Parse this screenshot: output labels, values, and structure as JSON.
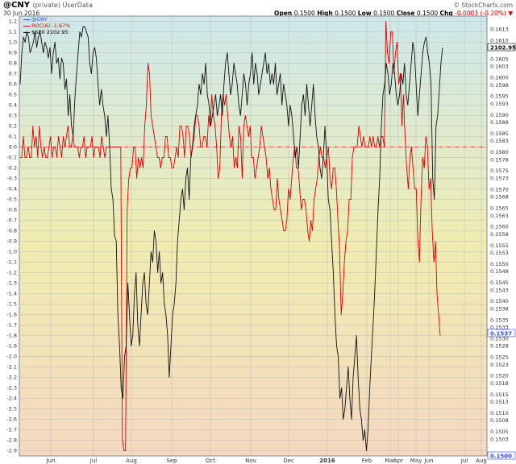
{
  "header": {
    "symbol": "@CNY",
    "symbol_note": "(private) UserData",
    "date": "30 Jun 2016",
    "brand": "© StockCharts.com",
    "open_label": "Open",
    "open": "0.1500",
    "high_label": "High",
    "high": "0.1500",
    "low_label": "Low",
    "low": "0.1500",
    "close_label": "Close",
    "close": "0.1500",
    "chg_label": "Chg",
    "chg": "-0.0003 (-0.20%) ▼"
  },
  "legend": [
    {
      "text": "@CNY",
      "color": "#3344ff"
    },
    {
      "text": "ROC(6) -1.67%",
      "color": "#dd0000"
    },
    {
      "text": "$SPX 2102.95",
      "color": "#000000"
    }
  ],
  "colors": {
    "roc": "#dd0000",
    "spx": "#111111",
    "zero_line": "#dd2222",
    "bg_top": "#cde8ea",
    "bg_mid": "#f0ecb0",
    "bg_bottom": "#f4d8c0",
    "grid": "#bcbcbc",
    "tag_spx_bg": "#ffffff"
  },
  "chart_data": {
    "type": "line",
    "left_axis": {
      "label": "ROC(6)",
      "range": [
        -2.95,
        1.25
      ],
      "ticks": [
        "1.2",
        "1.1",
        "1.0",
        "0.9",
        "0.8",
        "0.7",
        "0.6",
        "0.5",
        "0.4",
        "0.3",
        "0.2",
        "0.1",
        "0.0",
        "-0.1",
        "-0.2",
        "-0.3",
        "-0.4",
        "-0.5",
        "-0.6",
        "-0.7",
        "-0.8",
        "-0.9",
        "-1.0",
        "-1.1",
        "-1.2",
        "-1.3",
        "-1.4",
        "-1.5",
        "-1.6",
        "-1.7",
        "-1.8",
        "-1.9",
        "-2.0",
        "-2.1",
        "-2.2",
        "-2.3",
        "-2.4",
        "-2.5",
        "-2.6",
        "-2.7",
        "-2.8",
        "-2.9"
      ]
    },
    "right_axis": {
      "label": "@CNY",
      "range": [
        0.14985,
        0.16165
      ],
      "ticks": [
        "0.1613",
        "0.1610",
        "0.1608",
        "0.1605",
        "0.1603",
        "0.1600",
        "0.1598",
        "0.1595",
        "0.1593",
        "0.1590",
        "0.1588",
        "0.1585",
        "0.1583",
        "0.1580",
        "0.1578",
        "0.1575",
        "0.1573",
        "0.1570",
        "0.1568",
        "0.1565",
        "0.1563",
        "0.1560",
        "0.1558",
        "0.1555",
        "0.1553",
        "0.1550",
        "0.1548",
        "0.1545",
        "0.1543",
        "0.1540",
        "0.1538",
        "0.1535",
        "0.1533",
        "0.1530",
        "0.1528",
        "0.1525",
        "0.1523",
        "0.1520",
        "0.1518",
        "0.1515",
        "0.1513",
        "0.1510",
        "0.1508",
        "0.1505",
        "0.1503"
      ],
      "tags": {
        "spx": "2102.95",
        "roc": "0.1537",
        "cny": "0.1500"
      }
    },
    "x_labels": [
      "Jun",
      "Jul",
      "Aug",
      "Sep",
      "Oct",
      "Nov",
      "Dec",
      "2016",
      "Feb",
      "Mar",
      "Apr",
      "May",
      "Jun",
      "Jul",
      "Aug"
    ],
    "grid": true,
    "legend_position": "top-left",
    "series": [
      {
        "name": "ROC(6) -1.67%",
        "color": "#dd0000",
        "values": [
          -0.1,
          -0.1,
          0.1,
          -0.1,
          -0.1,
          0.0,
          -0.1,
          -0.1,
          0.2,
          0.0,
          0.1,
          -0.1,
          0.2,
          0.0,
          -0.1,
          0.0,
          -0.1,
          -0.1,
          0.0,
          0.1,
          -0.1,
          0.0,
          0.0,
          -0.1,
          0.1,
          0.0,
          -0.1,
          0.1,
          0.0,
          0.1,
          0.2,
          0.0,
          0.0,
          0.1,
          0.0,
          0.0,
          0.0,
          -0.1,
          0.0,
          0.0,
          0.1,
          -0.1,
          0.0,
          0.0,
          0.0,
          0.1,
          -0.1,
          0.0,
          0.0,
          0.0,
          -0.1,
          0.1,
          0.0,
          -0.1,
          0.0,
          0.0,
          0.0,
          0.0,
          0.0,
          0.0,
          0.0,
          0.0,
          0.0,
          0.0,
          -2.8,
          -2.9,
          -2.9,
          -0.6,
          -0.3,
          -0.2,
          -0.2,
          0.0,
          0.0,
          -0.3,
          -0.1,
          -0.2,
          -0.1,
          -0.2,
          0.2,
          0.4,
          0.8,
          0.7,
          0.3,
          0.2,
          0.1,
          0.0,
          -0.1,
          -0.1,
          -0.2,
          -0.1,
          -0.1,
          0.1,
          0.1,
          -0.1,
          -0.1,
          -0.2,
          -0.2,
          -0.1,
          0.0,
          -0.1,
          0.2,
          0.2,
          0.1,
          -0.1,
          0.2,
          0.2,
          0.1,
          -0.1,
          0.0,
          0.1,
          0.3,
          0.3,
          0.2,
          0.0,
          0.0,
          0.1,
          0.1,
          0.0,
          0.3,
          0.2,
          0.5,
          0.3,
          0.2,
          0.0,
          -0.3,
          -0.2,
          0.3,
          0.5,
          0.4,
          0.5,
          0.3,
          0.1,
          0.0,
          0.1,
          -0.2,
          -0.1,
          -0.2,
          0.2,
          0.1,
          -0.3,
          0.2,
          0.3,
          0.2,
          0.1,
          0.2,
          -0.1,
          -0.1,
          -0.3,
          -0.2,
          -0.1,
          0.0,
          0.2,
          0.1,
          0.0,
          -0.1,
          -0.3,
          -0.2,
          -0.4,
          -0.5,
          -0.6,
          -0.6,
          -0.3,
          -0.5,
          -0.6,
          -0.7,
          -0.8,
          -0.8,
          -0.7,
          -0.4,
          -0.5,
          -0.3,
          -0.1,
          0.0,
          -0.2,
          -0.2,
          -0.4,
          -0.6,
          -0.5,
          -0.5,
          -0.6,
          -0.8,
          -0.9,
          -0.7,
          -0.8,
          -0.5,
          -0.4,
          -0.3,
          -0.1,
          0.0,
          -0.1,
          -0.1,
          -0.2,
          -0.1,
          0.0,
          -0.3,
          -0.4,
          -0.2,
          -0.2,
          -0.4,
          -0.7,
          -1.0,
          -1.6,
          -1.4,
          -1.1,
          -0.9,
          -0.8,
          -0.5,
          -0.5,
          -0.1,
          0.0,
          0.0,
          0.0,
          0.2,
          0.1,
          0.0,
          0.1,
          0.0,
          0.0,
          0.0,
          0.1,
          0.0,
          0.1,
          0.0,
          0.0,
          0.1,
          0.0,
          0.1,
          0.1,
          0.0,
          1.2,
          0.9,
          0.8,
          1.1,
          1.1,
          0.7,
          0.9,
          1.0,
          0.6,
          0.7,
          0.2,
          0.5,
          0.1,
          -0.2,
          -0.4,
          -0.1,
          0.0,
          -0.2,
          -0.4,
          -0.4,
          -0.9,
          -1.1,
          -0.5,
          -0.1,
          -0.2,
          0.1,
          0.0,
          -0.4,
          -0.3,
          -0.8,
          -1.1,
          -0.9,
          -1.4,
          -1.6,
          -1.8
        ]
      },
      {
        "name": "$SPX 2102.95",
        "color": "#111111",
        "values": [
          0.6,
          0.9,
          1.05,
          1.0,
          1.1,
          1.05,
          0.9,
          0.95,
          1.0,
          1.1,
          0.95,
          1.05,
          1.1,
          1.0,
          0.9,
          1.0,
          0.95,
          0.85,
          0.95,
          0.7,
          0.9,
          1.0,
          0.8,
          0.85,
          0.65,
          0.85,
          0.8,
          0.55,
          0.65,
          0.3,
          0.5,
          0.2,
          0.1,
          0.45,
          0.7,
          0.9,
          1.1,
          1.05,
          1.15,
          1.15,
          1.1,
          1.05,
          0.8,
          0.7,
          0.9,
          0.95,
          0.85,
          0.6,
          0.4,
          0.55,
          0.4,
          0.3,
          0.1,
          0.3,
          0.0,
          -0.4,
          -0.5,
          -0.85,
          -0.9,
          -1.6,
          -1.9,
          -2.3,
          -2.4,
          -2.0,
          -1.9,
          -1.3,
          -1.6,
          -1.9,
          -1.8,
          -1.4,
          -1.2,
          -1.7,
          -1.9,
          -1.6,
          -1.3,
          -1.2,
          -1.5,
          -1.6,
          -1.3,
          -1.0,
          -1.1,
          -0.8,
          -0.9,
          -1.2,
          -1.0,
          -1.3,
          -1.2,
          -1.5,
          -1.6,
          -1.8,
          -2.2,
          -1.9,
          -1.6,
          -1.5,
          -1.3,
          -0.9,
          -0.7,
          -0.5,
          -0.4,
          -0.6,
          -0.3,
          -0.2,
          -0.5,
          -0.1,
          0.0,
          0.2,
          0.3,
          0.4,
          0.6,
          0.5,
          0.7,
          0.6,
          0.8,
          0.5,
          0.4,
          0.2,
          0.3,
          0.4,
          0.5,
          0.3,
          0.4,
          0.5,
          0.3,
          0.6,
          0.8,
          0.9,
          0.7,
          0.5,
          0.6,
          0.8,
          0.7,
          0.6,
          0.4,
          0.3,
          0.5,
          0.7,
          0.6,
          0.4,
          0.6,
          0.7,
          0.9,
          0.6,
          0.8,
          0.7,
          0.5,
          0.6,
          0.7,
          0.8,
          0.9,
          0.7,
          0.8,
          0.6,
          0.7,
          0.6,
          0.8,
          0.5,
          0.6,
          0.7,
          0.4,
          0.6,
          0.5,
          0.4,
          0.2,
          0.4,
          0.3,
          0.1,
          -0.1,
          0.0,
          -0.2,
          0.1,
          0.4,
          0.5,
          0.3,
          0.6,
          0.4,
          0.2,
          0.4,
          0.6,
          0.3,
          0.1,
          0.0,
          -0.2,
          -0.3,
          -0.1,
          0.2,
          -0.1,
          -0.5,
          -0.6,
          -0.9,
          -1.2,
          -1.6,
          -1.9,
          -2.0,
          -2.4,
          -2.3,
          -2.6,
          -2.5,
          -2.3,
          -2.1,
          -2.4,
          -2.6,
          -2.2,
          -2.0,
          -1.8,
          -2.2,
          -2.5,
          -2.6,
          -2.8,
          -2.7,
          -2.9,
          -2.7,
          -2.3,
          -2.0,
          -1.7,
          -1.4,
          -1.0,
          -0.6,
          -0.3,
          0.2,
          0.5,
          0.6,
          0.8,
          0.7,
          0.5,
          0.6,
          0.8,
          0.7,
          0.5,
          0.4,
          0.5,
          0.7,
          0.6,
          0.8,
          0.5,
          0.4,
          0.6,
          0.8,
          1.0,
          0.9,
          0.6,
          0.3,
          0.5,
          0.7,
          0.9,
          1.0,
          1.05,
          0.9,
          0.8,
          0.6,
          -0.3,
          -0.5,
          0.2,
          0.3,
          0.55,
          0.8,
          0.95
        ]
      }
    ]
  }
}
